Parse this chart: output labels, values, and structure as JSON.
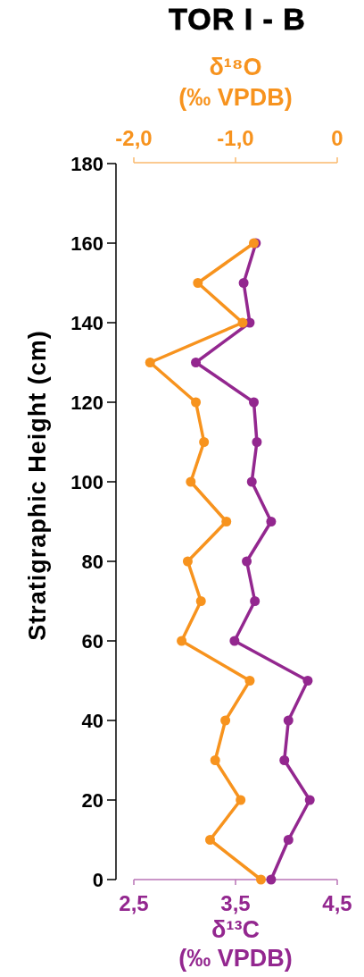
{
  "chart_data": {
    "type": "line",
    "title": "TOR I - B",
    "xlabel": "δ¹³C\n(‰ VPDB)",
    "x2label": "δ¹⁸O\n(‰ VPDB)",
    "ylabel": "Stratigraphic Height (cm)",
    "xlim": [
      2.5,
      4.5
    ],
    "xticks": [
      {
        "value": 2.5,
        "label": "2,5"
      },
      {
        "value": 3.5,
        "label": "3,5"
      },
      {
        "value": 4.5,
        "label": "4,5"
      }
    ],
    "x2lim": [
      -2,
      0
    ],
    "x2ticks": [
      {
        "value": -2,
        "label": "-2,0"
      },
      {
        "value": -1,
        "label": "-1,0"
      },
      0
    ],
    "ylim": [
      0,
      180
    ],
    "yticks": [
      0,
      20,
      40,
      60,
      80,
      100,
      120,
      140,
      160,
      180
    ],
    "marker": "circle",
    "series": [
      {
        "color": "#93278f",
        "x": [
          3.85,
          4.02,
          4.23,
          3.98,
          4.02,
          4.21,
          3.49,
          3.69,
          3.61,
          3.85,
          3.66,
          3.71,
          3.68,
          3.11,
          3.64,
          3.58,
          3.7
        ],
        "values": [
          0,
          10,
          20,
          30,
          40,
          50,
          60,
          70,
          80,
          90,
          100,
          110,
          120,
          130,
          140,
          150,
          160
        ]
      },
      {
        "color": "#f7931e",
        "axis": "x2",
        "x": [
          -0.75,
          -1.25,
          -0.95,
          -1.2,
          -1.1,
          -0.86,
          -1.53,
          -1.34,
          -1.47,
          -1.09,
          -1.44,
          -1.31,
          -1.39,
          -1.84,
          -0.93,
          -1.37,
          -0.82
        ],
        "values": [
          0,
          10,
          20,
          30,
          40,
          50,
          60,
          70,
          80,
          90,
          100,
          110,
          120,
          130,
          140,
          150,
          160
        ]
      }
    ]
  }
}
